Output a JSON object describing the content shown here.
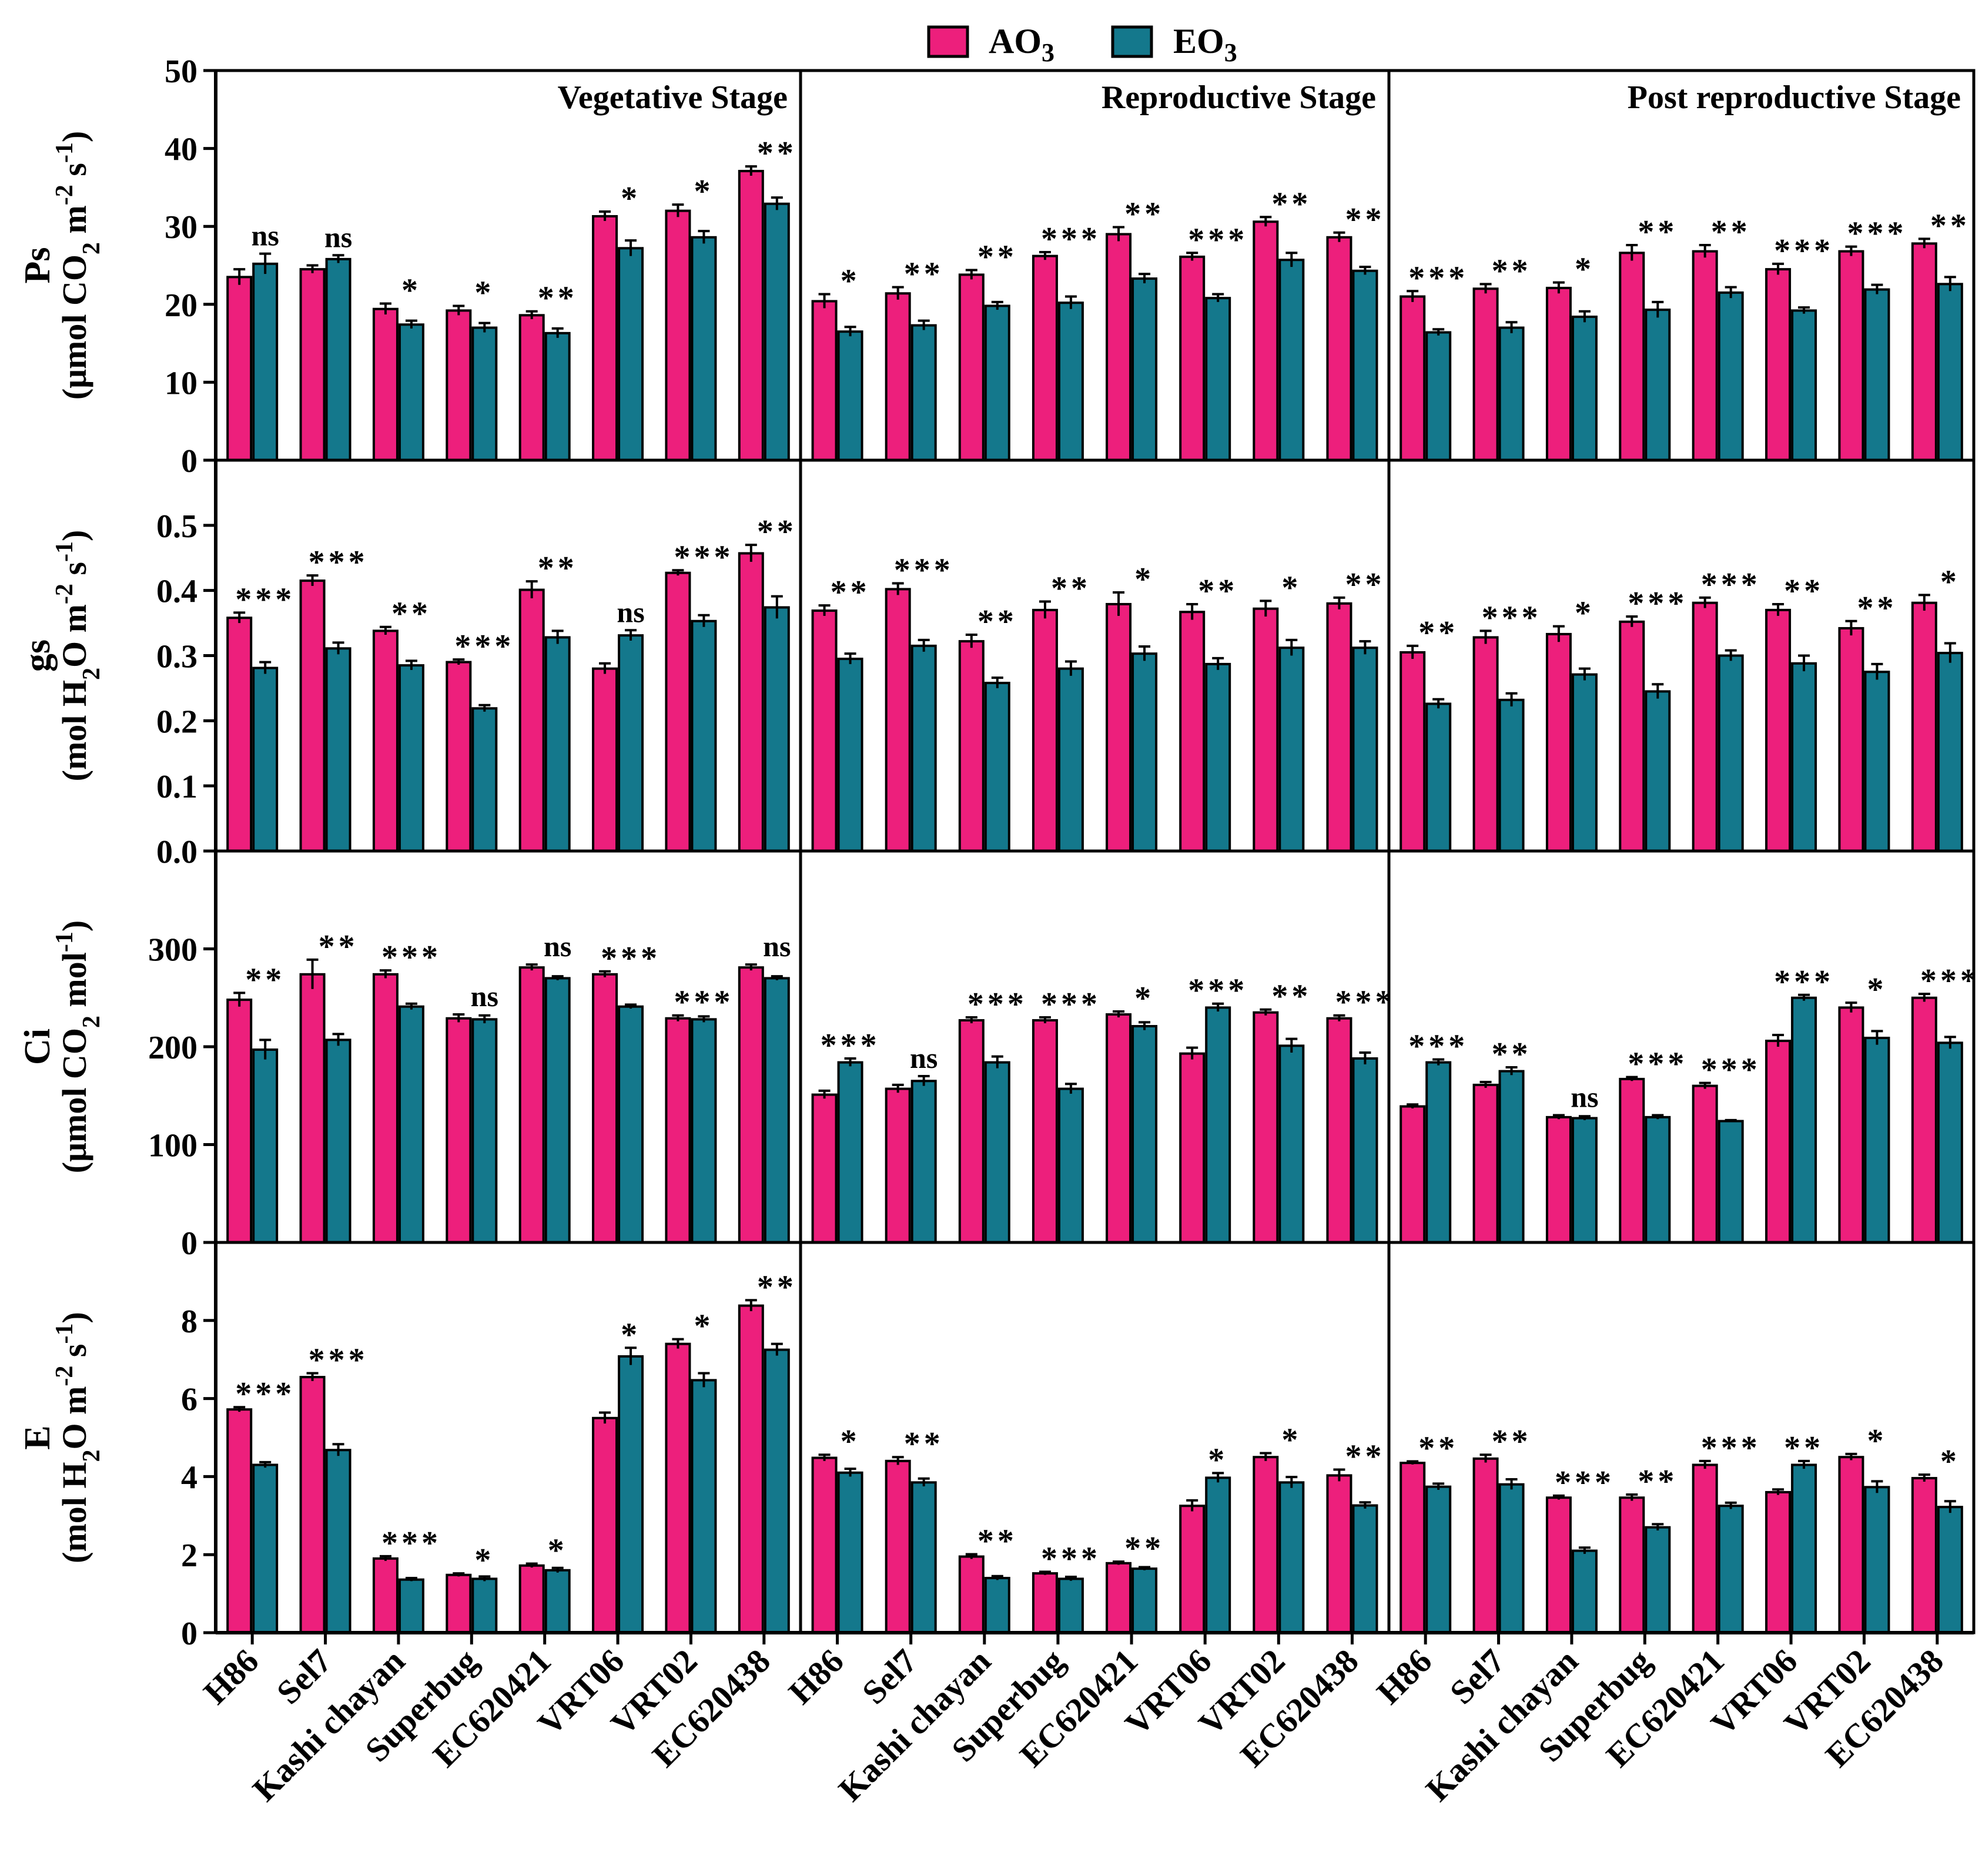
{
  "legend": {
    "ao3": "AO3",
    "eo3": "EO3"
  },
  "colors": {
    "ao3": "#ED1F7C",
    "eo3": "#14788C",
    "axis": "#000000"
  },
  "stages": [
    "Vegetative Stage",
    "Reproductive Stage",
    "Post reproductive Stage"
  ],
  "rows": [
    {
      "key": "Ps",
      "label_main": "Ps",
      "label_unit_parts": [
        "(μmol CO",
        "2",
        " m",
        "-2",
        " s",
        "-1",
        ")"
      ],
      "ticks": [
        "0",
        "10",
        "20",
        "30",
        "40",
        "50"
      ]
    },
    {
      "key": "gs",
      "label_main": "gs",
      "label_unit_parts": [
        "(mol H",
        "2",
        "O m",
        "-2",
        " s",
        "-1",
        ")"
      ],
      "ticks": [
        "0.0",
        "0.1",
        "0.2",
        "0.3",
        "0.4",
        "0.5"
      ]
    },
    {
      "key": "Ci",
      "label_main": "Ci",
      "label_unit_parts": [
        "(μmol CO",
        "2",
        " mol",
        "-1",
        ")",
        "",
        ""
      ],
      "ticks": [
        "0",
        "100",
        "200",
        "300"
      ]
    },
    {
      "key": "E",
      "label_main": "E",
      "label_unit_parts": [
        "(mol H",
        "2",
        "O m",
        "-2",
        " s",
        "-1",
        ")"
      ],
      "ticks": [
        "0",
        "2",
        "4",
        "6",
        "8"
      ]
    }
  ],
  "chart_data": {
    "type": "bar",
    "title": "",
    "categories": [
      "H86",
      "Sel7",
      "Kashi chayan",
      "Superbug",
      "EC620421",
      "VRT06",
      "VRT02",
      "EC620438"
    ],
    "series_names": [
      "AO3",
      "EO3"
    ],
    "panels": [
      {
        "row": "Ps",
        "ylabel": "Ps (μmol CO2 m-2 s-1)",
        "ylim": [
          0,
          50
        ],
        "yticks": [
          0,
          10,
          20,
          30,
          40,
          50
        ],
        "stages": [
          {
            "stage": "Vegetative Stage",
            "AO3": [
              23.5,
              24.5,
              19.4,
              19.2,
              18.6,
              31.3,
              32.0,
              37.1
            ],
            "AO3_err": [
              1.0,
              0.5,
              0.7,
              0.6,
              0.5,
              0.6,
              0.8,
              0.6
            ],
            "EO3": [
              25.2,
              25.8,
              17.4,
              17.0,
              16.3,
              27.2,
              28.6,
              32.9
            ],
            "EO3_err": [
              1.3,
              0.5,
              0.5,
              0.6,
              0.6,
              1.0,
              0.8,
              0.8
            ],
            "sig": [
              "ns",
              "ns",
              "*",
              "*",
              "**",
              "*",
              "*",
              "**"
            ]
          },
          {
            "stage": "Reproductive Stage",
            "AO3": [
              20.4,
              21.4,
              23.8,
              26.2,
              29.0,
              26.1,
              30.6,
              28.6
            ],
            "AO3_err": [
              0.9,
              0.8,
              0.6,
              0.5,
              0.9,
              0.5,
              0.6,
              0.6
            ],
            "EO3": [
              16.5,
              17.3,
              19.8,
              20.2,
              23.3,
              20.8,
              25.7,
              24.3
            ],
            "EO3_err": [
              0.6,
              0.6,
              0.5,
              0.8,
              0.6,
              0.5,
              0.9,
              0.5
            ],
            "sig": [
              "*",
              "**",
              "**",
              "***",
              "**",
              "***",
              "**",
              "**"
            ]
          },
          {
            "stage": "Post reproductive Stage",
            "AO3": [
              21.0,
              22.0,
              22.1,
              26.6,
              26.8,
              24.5,
              26.8,
              27.8
            ],
            "AO3_err": [
              0.7,
              0.6,
              0.7,
              1.0,
              0.8,
              0.7,
              0.6,
              0.6
            ],
            "EO3": [
              16.4,
              17.0,
              18.4,
              19.3,
              21.5,
              19.2,
              21.9,
              22.6
            ],
            "EO3_err": [
              0.4,
              0.7,
              0.7,
              1.0,
              0.7,
              0.4,
              0.6,
              0.9
            ],
            "sig": [
              "***",
              "**",
              "*",
              "**",
              "**",
              "***",
              "***",
              "**"
            ]
          }
        ]
      },
      {
        "row": "gs",
        "ylabel": "gs (mol H2O m-2 s-1)",
        "ylim": [
          0,
          0.6
        ],
        "yticks": [
          0.0,
          0.1,
          0.2,
          0.3,
          0.4,
          0.5
        ],
        "stages": [
          {
            "stage": "Vegetative Stage",
            "AO3": [
              0.358,
              0.415,
              0.338,
              0.29,
              0.401,
              0.28,
              0.427,
              0.457
            ],
            "AO3_err": [
              0.008,
              0.008,
              0.006,
              0.004,
              0.013,
              0.008,
              0.004,
              0.013
            ],
            "EO3": [
              0.281,
              0.311,
              0.285,
              0.219,
              0.328,
              0.331,
              0.353,
              0.374
            ],
            "EO3_err": [
              0.009,
              0.009,
              0.007,
              0.005,
              0.01,
              0.008,
              0.009,
              0.017
            ],
            "sig": [
              "***",
              "***",
              "**",
              "***",
              "**",
              "ns",
              "***",
              "**"
            ]
          },
          {
            "stage": "Reproductive Stage",
            "AO3": [
              0.369,
              0.402,
              0.322,
              0.37,
              0.379,
              0.367,
              0.372,
              0.38
            ],
            "AO3_err": [
              0.008,
              0.009,
              0.01,
              0.013,
              0.018,
              0.012,
              0.012,
              0.009
            ],
            "EO3": [
              0.295,
              0.315,
              0.258,
              0.28,
              0.303,
              0.287,
              0.312,
              0.312
            ],
            "EO3_err": [
              0.008,
              0.009,
              0.008,
              0.011,
              0.011,
              0.009,
              0.012,
              0.01
            ],
            "sig": [
              "**",
              "***",
              "**",
              "**",
              "*",
              "**",
              "*",
              "**"
            ]
          },
          {
            "stage": "Post reproductive Stage",
            "AO3": [
              0.305,
              0.328,
              0.333,
              0.352,
              0.381,
              0.37,
              0.342,
              0.381
            ],
            "AO3_err": [
              0.01,
              0.01,
              0.012,
              0.008,
              0.008,
              0.009,
              0.011,
              0.012
            ],
            "EO3": [
              0.226,
              0.232,
              0.271,
              0.245,
              0.3,
              0.288,
              0.275,
              0.304
            ],
            "EO3_err": [
              0.007,
              0.01,
              0.009,
              0.011,
              0.008,
              0.012,
              0.012,
              0.015
            ],
            "sig": [
              "**",
              "***",
              "*",
              "***",
              "***",
              "**",
              "**",
              "*"
            ]
          }
        ]
      },
      {
        "row": "Ci",
        "ylabel": "Ci (μmol CO2 mol-1)",
        "ylim": [
          0,
          400
        ],
        "yticks": [
          0,
          100,
          200,
          300
        ],
        "stages": [
          {
            "stage": "Vegetative Stage",
            "AO3": [
              248,
              274,
              274,
              229,
              281,
              274,
              229,
              281
            ],
            "AO3_err": [
              7,
              15,
              4,
              4,
              3,
              3,
              3,
              3
            ],
            "EO3": [
              197,
              207,
              241,
              228,
              270,
              241,
              228,
              270
            ],
            "EO3_err": [
              10,
              6,
              3,
              4,
              2,
              2,
              3,
              2
            ],
            "sig": [
              "**",
              "**",
              "***",
              "ns",
              "ns",
              "***",
              "***",
              "ns"
            ]
          },
          {
            "stage": "Reproductive Stage",
            "AO3": [
              151,
              157,
              227,
              227,
              233,
              193,
              235,
              229
            ],
            "AO3_err": [
              4,
              4,
              3,
              3,
              3,
              6,
              3,
              3
            ],
            "EO3": [
              184,
              165,
              184,
              157,
              221,
              240,
              201,
              188
            ],
            "EO3_err": [
              4,
              5,
              6,
              5,
              4,
              4,
              7,
              6
            ],
            "sig": [
              "***",
              "ns",
              "***",
              "***",
              "*",
              "***",
              "**",
              "***"
            ]
          },
          {
            "stage": "Post reproductive Stage",
            "AO3": [
              139,
              161,
              128,
              167,
              160,
              206,
              240,
              250
            ],
            "AO3_err": [
              2,
              3,
              2,
              2,
              3,
              6,
              5,
              4
            ],
            "EO3": [
              184,
              175,
              127,
              128,
              124,
              250,
              209,
              204
            ],
            "EO3_err": [
              3,
              4,
              2,
              2,
              1,
              3,
              7,
              6
            ],
            "sig": [
              "***",
              "**",
              "ns",
              "***",
              "***",
              "***",
              "*",
              "***"
            ]
          }
        ]
      },
      {
        "row": "E",
        "ylabel": "E (mol H2O m-2 s-1)",
        "ylim": [
          0,
          10
        ],
        "yticks": [
          0,
          2,
          4,
          6,
          8
        ],
        "stages": [
          {
            "stage": "Vegetative Stage",
            "AO3": [
              5.72,
              6.55,
              1.9,
              1.48,
              1.72,
              5.5,
              7.4,
              8.38
            ],
            "AO3_err": [
              0.06,
              0.1,
              0.06,
              0.04,
              0.05,
              0.14,
              0.12,
              0.14
            ],
            "EO3": [
              4.3,
              4.68,
              1.36,
              1.38,
              1.6,
              7.08,
              6.47,
              7.25
            ],
            "EO3_err": [
              0.07,
              0.15,
              0.04,
              0.06,
              0.06,
              0.22,
              0.18,
              0.15
            ],
            "sig": [
              "***",
              "***",
              "***",
              "*",
              "*",
              "*",
              "*",
              "**"
            ]
          },
          {
            "stage": "Reproductive Stage",
            "AO3": [
              4.48,
              4.4,
              1.95,
              1.52,
              1.78,
              3.25,
              4.5,
              4.03
            ],
            "AO3_err": [
              0.08,
              0.1,
              0.06,
              0.04,
              0.04,
              0.14,
              0.1,
              0.15
            ],
            "EO3": [
              4.1,
              3.85,
              1.4,
              1.38,
              1.64,
              3.97,
              3.85,
              3.26
            ],
            "EO3_err": [
              0.1,
              0.1,
              0.05,
              0.05,
              0.04,
              0.12,
              0.14,
              0.08
            ],
            "sig": [
              "*",
              "**",
              "**",
              "***",
              "**",
              "*",
              "*",
              "**"
            ]
          },
          {
            "stage": "Post reproductive Stage",
            "AO3": [
              4.35,
              4.46,
              3.46,
              3.46,
              4.3,
              3.6,
              4.5,
              3.96
            ],
            "AO3_err": [
              0.04,
              0.1,
              0.05,
              0.08,
              0.1,
              0.07,
              0.08,
              0.09
            ],
            "EO3": [
              3.74,
              3.8,
              2.1,
              2.7,
              3.25,
              4.3,
              3.73,
              3.22
            ],
            "EO3_err": [
              0.08,
              0.13,
              0.08,
              0.08,
              0.08,
              0.1,
              0.15,
              0.15
            ],
            "sig": [
              "**",
              "**",
              "***",
              "**",
              "***",
              "**",
              "*",
              "*"
            ]
          }
        ]
      }
    ]
  }
}
